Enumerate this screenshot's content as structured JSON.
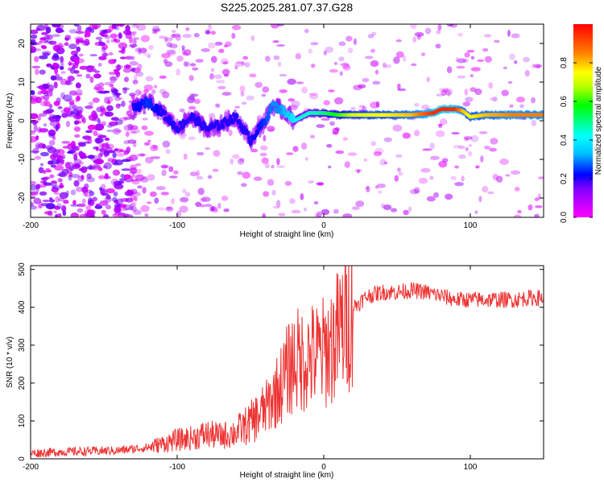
{
  "title": "S225.2025.281.07.37.G28",
  "chart_data": [
    {
      "type": "heatmap",
      "title": "S225.2025.281.07.37.G28",
      "xlabel": "Height of straight line (km)",
      "ylabel": "Frequency (Hz)",
      "xlim": [
        -200,
        150
      ],
      "ylim": [
        -25,
        25
      ],
      "xticks": [
        -200,
        -100,
        0,
        100
      ],
      "yticks": [
        -20,
        -10,
        0,
        10,
        20
      ],
      "colorbar": {
        "label": "Normalized spectral amplitude",
        "range": [
          0,
          1
        ],
        "ticks": [
          "0.0",
          "0.2",
          "0.4",
          "0.6",
          "0.8"
        ]
      },
      "ridge": {
        "description": "dominant frequency track",
        "x": [
          -130,
          -120,
          -110,
          -100,
          -90,
          -80,
          -70,
          -60,
          -50,
          -40,
          -35,
          -30,
          -25,
          -20,
          -15,
          -10,
          0,
          10,
          20,
          40,
          60,
          75,
          80,
          90,
          95,
          100,
          110,
          130,
          150
        ],
        "y": [
          3,
          5,
          2,
          -2,
          1,
          -2,
          -1,
          1,
          -5,
          0,
          4,
          3,
          2,
          0,
          1,
          2,
          2,
          1.5,
          1.5,
          1.5,
          1.5,
          2,
          3,
          3,
          2.5,
          1,
          1.5,
          1.5,
          1.5
        ],
        "amplitude": [
          0.2,
          0.25,
          0.2,
          0.2,
          0.2,
          0.2,
          0.2,
          0.2,
          0.2,
          0.25,
          0.3,
          0.3,
          0.35,
          0.4,
          0.45,
          0.45,
          0.5,
          0.6,
          0.7,
          0.75,
          0.8,
          0.95,
          0.95,
          0.95,
          0.8,
          0.75,
          0.8,
          0.85,
          0.85
        ]
      },
      "noise_region_x": [
        -200,
        -130
      ],
      "colors": {
        "plot_background": "#ffffff"
      }
    },
    {
      "type": "line",
      "xlabel": "Height of straight line (km)",
      "ylabel": "SNR (10 * v/v)",
      "xlim": [
        -200,
        150
      ],
      "ylim": [
        0,
        510
      ],
      "xticks": [
        -200,
        -100,
        0,
        100
      ],
      "yticks": [
        0,
        100,
        200,
        300,
        400,
        500
      ],
      "series": [
        {
          "name": "SNR",
          "color": "#ee3333",
          "x": [
            -200,
            -180,
            -160,
            -140,
            -120,
            -110,
            -100,
            -90,
            -80,
            -70,
            -60,
            -50,
            -40,
            -35,
            -30,
            -25,
            -20,
            -15,
            -10,
            -5,
            0,
            5,
            10,
            20,
            30,
            40,
            50,
            60,
            70,
            80,
            90,
            100,
            110,
            120,
            130,
            140,
            150
          ],
          "y": [
            15,
            18,
            20,
            22,
            30,
            40,
            50,
            55,
            65,
            60,
            70,
            95,
            130,
            160,
            190,
            230,
            260,
            260,
            270,
            270,
            280,
            300,
            330,
            400,
            430,
            440,
            440,
            445,
            440,
            430,
            420,
            420,
            420,
            420,
            420,
            425,
            425
          ]
        }
      ]
    }
  ]
}
